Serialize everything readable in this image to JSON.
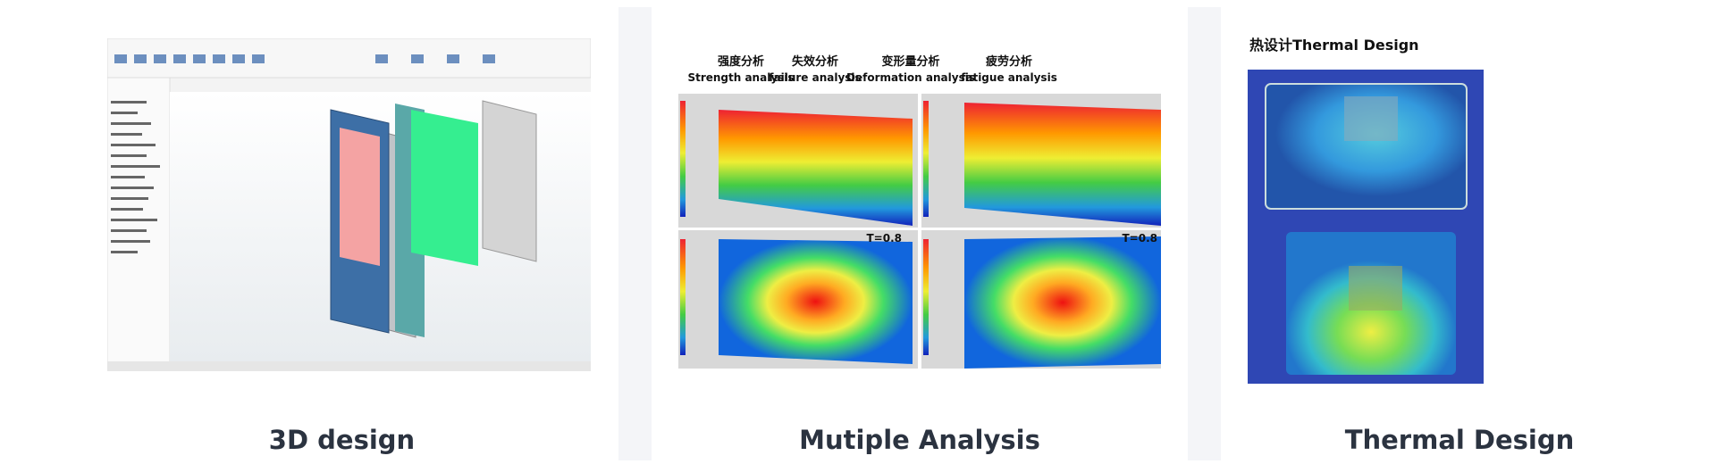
{
  "cards": [
    {
      "caption": "3D design"
    },
    {
      "caption": "Mutiple Analysis",
      "analyses": [
        {
          "cn": "强度分析",
          "en": "Strength analysis"
        },
        {
          "cn": "失效分析",
          "en": "failure analysis"
        },
        {
          "cn": "变形量分析",
          "en": "Deformation analysis"
        },
        {
          "cn": "疲劳分析",
          "en": "fatigue analysis"
        }
      ],
      "panel_labels": [
        "T=0.8",
        "T=0.8"
      ]
    },
    {
      "caption": "Thermal Design",
      "image_title": "热设计Thermal Design"
    }
  ]
}
